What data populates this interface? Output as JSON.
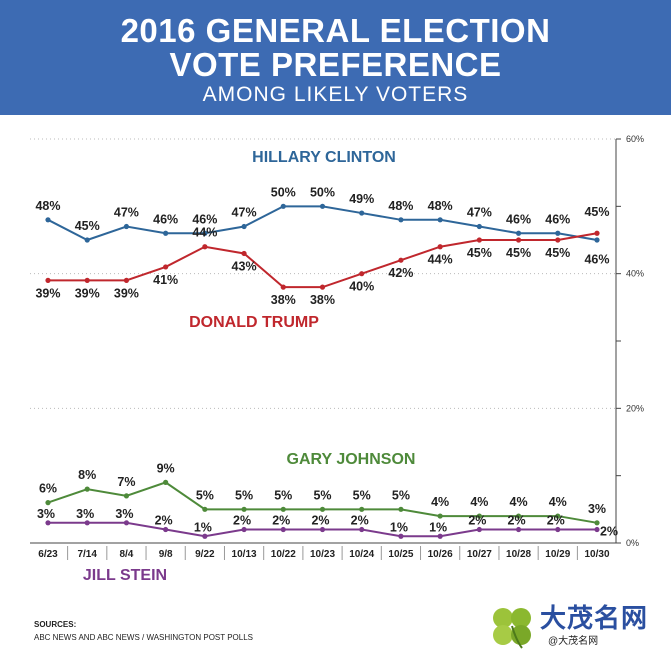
{
  "header": {
    "title_line1": "2016 GENERAL ELECTION",
    "title_line2": "VOTE PREFERENCE",
    "subtitle": "AMONG LIKELY VOTERS"
  },
  "chart_data": {
    "type": "line",
    "categories": [
      "6/23",
      "7/14",
      "8/4",
      "9/8",
      "9/22",
      "10/13",
      "10/22",
      "10/23",
      "10/24",
      "10/25",
      "10/26",
      "10/27",
      "10/28",
      "10/29",
      "10/30"
    ],
    "y_ticks": [
      "60%",
      "40%",
      "20%",
      "0%"
    ],
    "ylim": [
      0,
      60
    ],
    "series": [
      {
        "name": "HILLARY CLINTON",
        "color": "#2e6699",
        "values": [
          48,
          45,
          47,
          46,
          46,
          47,
          50,
          50,
          49,
          48,
          48,
          47,
          46,
          46,
          45
        ],
        "labels": [
          "48%",
          "45%",
          "47%",
          "46%",
          "46%",
          "47%",
          "50%",
          "50%",
          "49%",
          "48%",
          "48%",
          "47%",
          "46%",
          "46%",
          "45%"
        ]
      },
      {
        "name": "DONALD TRUMP",
        "color": "#c0272d",
        "values": [
          39,
          39,
          39,
          41,
          44,
          43,
          38,
          38,
          40,
          42,
          44,
          45,
          45,
          45,
          46
        ],
        "labels": [
          "39%",
          "39%",
          "39%",
          "41%",
          "44%",
          "43%",
          "38%",
          "38%",
          "40%",
          "42%",
          "44%",
          "45%",
          "45%",
          "45%",
          "46%"
        ]
      },
      {
        "name": "GARY JOHNSON",
        "color": "#4e8a3a",
        "values": [
          6,
          8,
          7,
          9,
          5,
          5,
          5,
          5,
          5,
          5,
          4,
          4,
          4,
          4,
          3
        ],
        "labels": [
          "6%",
          "8%",
          "7%",
          "9%",
          "5%",
          "5%",
          "5%",
          "5%",
          "5%",
          "5%",
          "4%",
          "4%",
          "4%",
          "4%",
          "3%"
        ]
      },
      {
        "name": "JILL STEIN",
        "color": "#7b3a8c",
        "values": [
          3,
          3,
          3,
          2,
          1,
          2,
          2,
          2,
          2,
          1,
          1,
          2,
          2,
          2,
          2
        ],
        "labels": [
          "3%",
          "3%",
          "3%",
          "2%",
          "1%",
          "2%",
          "2%",
          "2%",
          "2%",
          "1%",
          "1%",
          "2%",
          "2%",
          "2%",
          "2%"
        ]
      }
    ]
  },
  "footer": {
    "sources_label": "SOURCES:",
    "sources_text": "ABC NEWS AND ABC NEWS / WASHINGTON POST POLLS"
  },
  "logo": {
    "text": "大茂名网",
    "sub": "@大茂名网"
  }
}
